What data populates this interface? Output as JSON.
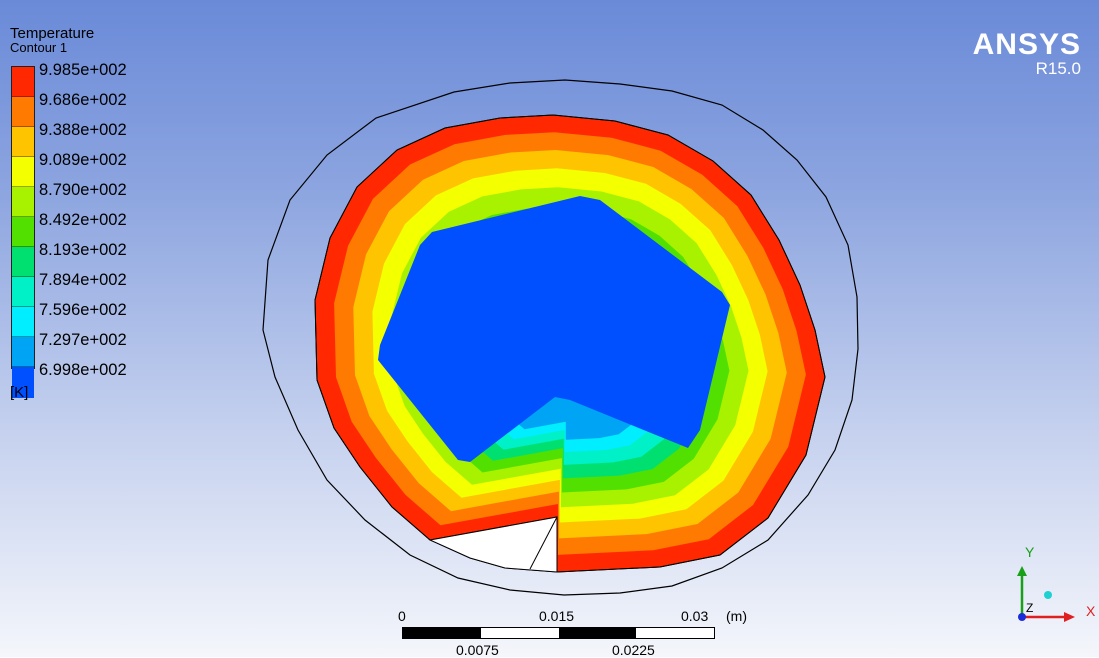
{
  "legend": {
    "title": "Temperature",
    "subtitle": "Contour 1",
    "unit": "[K]",
    "levels": [
      {
        "label": "9.985e+002",
        "color": "#ff2800"
      },
      {
        "label": "9.686e+002",
        "color": "#ff7a00"
      },
      {
        "label": "9.388e+002",
        "color": "#ffc400"
      },
      {
        "label": "9.089e+002",
        "color": "#f4ff00"
      },
      {
        "label": "8.790e+002",
        "color": "#a8f200"
      },
      {
        "label": "8.492e+002",
        "color": "#52e000"
      },
      {
        "label": "8.193e+002",
        "color": "#00e070"
      },
      {
        "label": "7.894e+002",
        "color": "#00f0c8"
      },
      {
        "label": "7.596e+002",
        "color": "#00eeff"
      },
      {
        "label": "7.297e+002",
        "color": "#00a4f5"
      },
      {
        "label": "6.998e+002",
        "color": "#0050ff"
      }
    ]
  },
  "brand": {
    "name": "ANSYS",
    "version": "R15.0"
  },
  "scale": {
    "top_labels": [
      "0",
      "0.015",
      "0.03",
      "(m)"
    ],
    "bottom_labels": [
      "0.0075",
      "0.0225"
    ]
  },
  "axes": {
    "y": "Y",
    "x": "X",
    "z": "Z",
    "colors": {
      "x": "#e02020",
      "y": "#18a018",
      "z": "#1a2dd8"
    }
  }
}
